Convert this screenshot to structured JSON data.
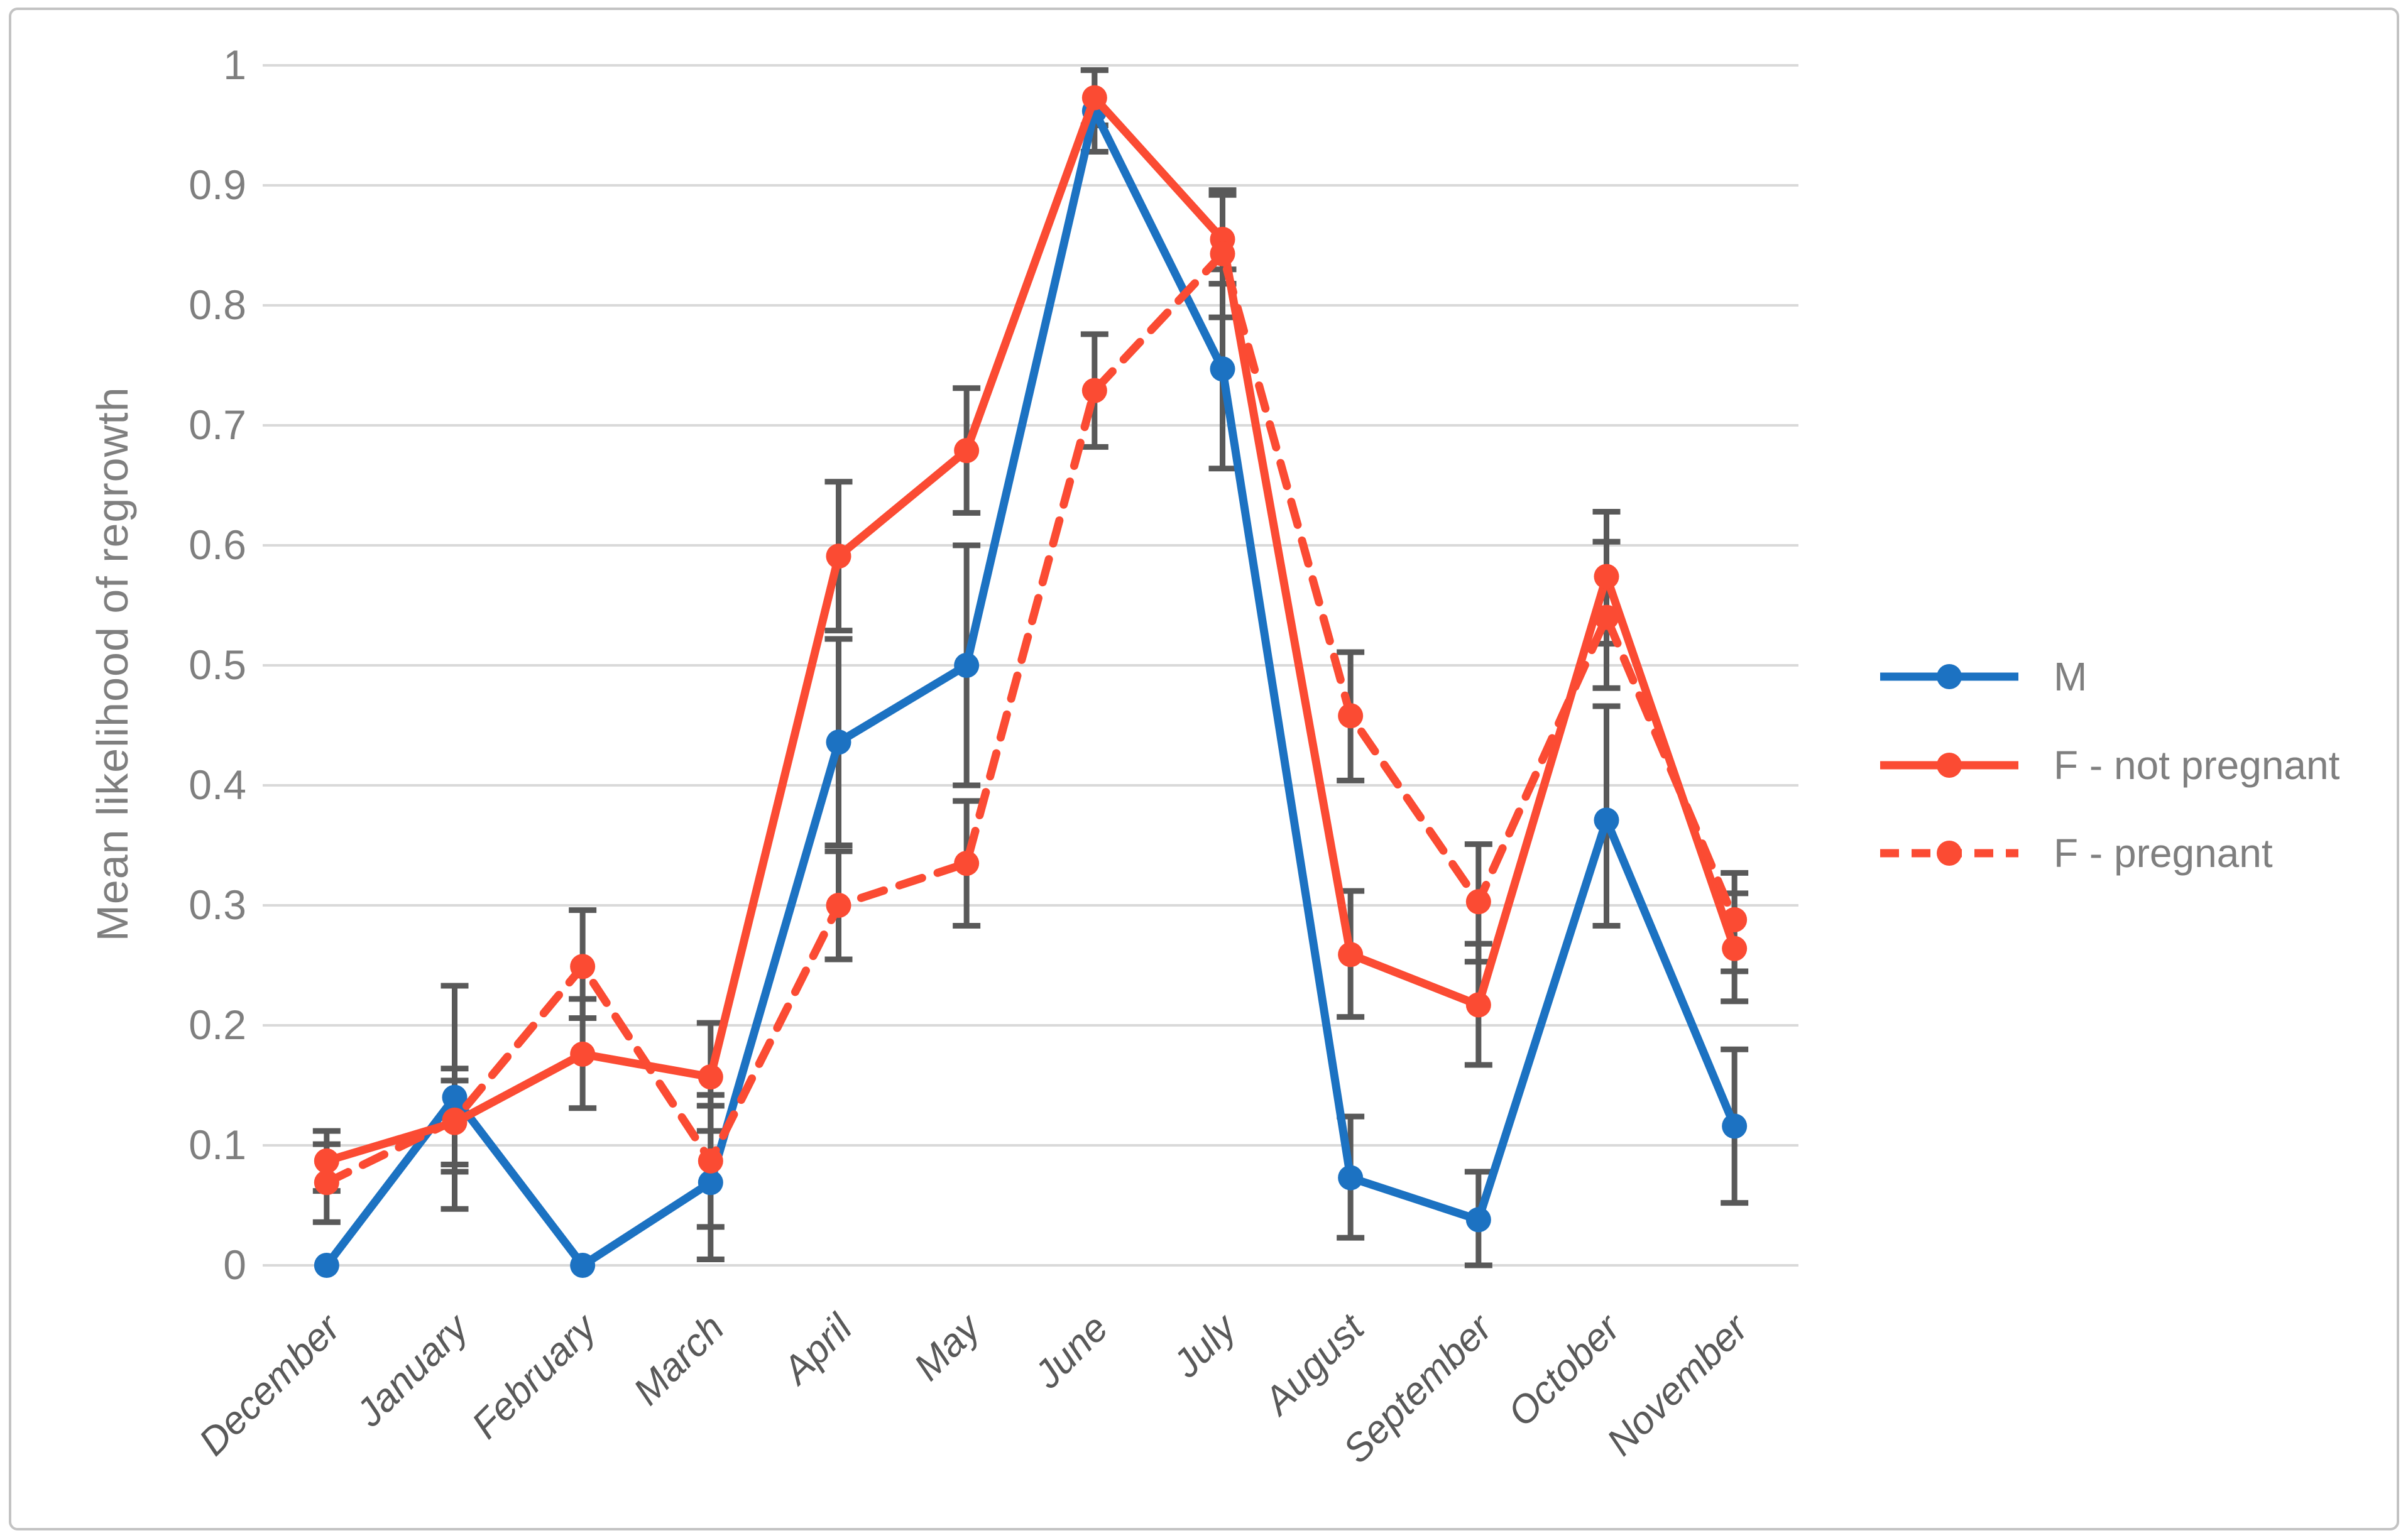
{
  "figure": {
    "background": "#ffffff",
    "border_color": "#c3c3c3"
  },
  "chart_data": {
    "type": "line",
    "title": "",
    "xlabel": "",
    "ylabel": "Mean likelihood of regrowth",
    "ylim": [
      0,
      1
    ],
    "grid": "horizontal",
    "gridline_color": "#d9d9d9",
    "axis_text_color": "#7f7f7f",
    "month_label_color": "#595959",
    "error_bar_color": "#595959",
    "yticks": [
      {
        "value": 1.0,
        "label": "1"
      },
      {
        "value": 0.9,
        "label": "0.9"
      },
      {
        "value": 0.8,
        "label": "0.8"
      },
      {
        "value": 0.7,
        "label": "0.7"
      },
      {
        "value": 0.6,
        "label": "0.6"
      },
      {
        "value": 0.5,
        "label": "0.5"
      },
      {
        "value": 0.4,
        "label": "0.4"
      },
      {
        "value": 0.3,
        "label": "0.3"
      },
      {
        "value": 0.2,
        "label": "0.2"
      },
      {
        "value": 0.1,
        "label": "0.1"
      },
      {
        "value": 0.0,
        "label": "0"
      }
    ],
    "categories": [
      "December",
      "January",
      "February",
      "March",
      "April",
      "May",
      "June",
      "July",
      "August",
      "September",
      "October",
      "November"
    ],
    "legend_position": "right",
    "series": [
      {
        "name": "M",
        "color": "#1c72c2",
        "line_style": "solid",
        "marker": "circle",
        "values": [
          0.0,
          0.14,
          0.0,
          0.069,
          0.436,
          0.5,
          0.962,
          0.747,
          0.073,
          0.038,
          0.371,
          0.116
        ],
        "err_lo": [
          null,
          0.047,
          null,
          0.005,
          0.35,
          0.4,
          0.928,
          0.664,
          0.023,
          0.0,
          0.283,
          0.052
        ],
        "err_hi": [
          null,
          0.233,
          null,
          0.133,
          0.522,
          0.6,
          0.996,
          0.83,
          0.124,
          0.078,
          0.466,
          0.18
        ]
      },
      {
        "name": "F - not pregnant",
        "color": "#fb4b33",
        "line_style": "solid",
        "marker": "circle",
        "values": [
          0.087,
          0.119,
          0.176,
          0.157,
          0.591,
          0.679,
          0.973,
          0.855,
          0.259,
          0.217,
          0.574,
          0.264
        ],
        "err_lo": [
          0.062,
          0.084,
          0.131,
          0.112,
          0.529,
          0.627,
          0.95,
          0.818,
          0.207,
          0.167,
          0.518,
          0.22
        ],
        "err_hi": [
          0.112,
          0.154,
          0.222,
          0.202,
          0.653,
          0.731,
          0.996,
          0.892,
          0.312,
          0.268,
          0.628,
          0.31
        ]
      },
      {
        "name": "F - pregnant",
        "color": "#fb4b33",
        "line_style": "dashed",
        "marker": "circle",
        "values": [
          0.069,
          0.121,
          0.249,
          0.087,
          0.3,
          0.335,
          0.729,
          0.843,
          0.458,
          0.303,
          0.54,
          0.288
        ],
        "err_lo": [
          0.036,
          0.078,
          0.206,
          0.032,
          0.255,
          0.283,
          0.682,
          0.79,
          0.404,
          0.253,
          0.481,
          0.245
        ],
        "err_hi": [
          0.101,
          0.164,
          0.296,
          0.142,
          0.345,
          0.387,
          0.776,
          0.896,
          0.511,
          0.351,
          0.603,
          0.327
        ]
      }
    ]
  }
}
